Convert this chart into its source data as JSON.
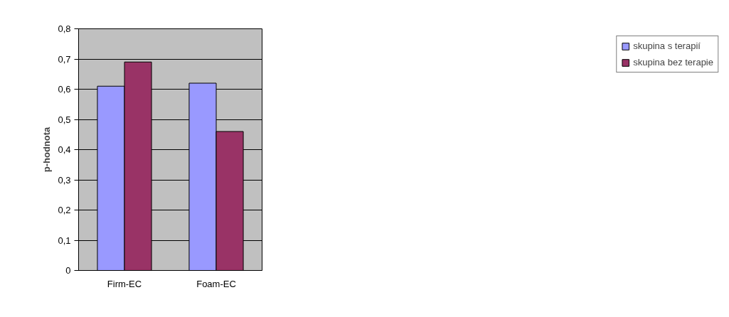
{
  "chart_data": {
    "type": "bar",
    "ylabel": "p-hodnota",
    "categories": [
      "Firm-EC",
      "Foam-EC"
    ],
    "series": [
      {
        "name": "skupina s terapií",
        "color": "#9999ff",
        "values": [
          0.61,
          0.62
        ]
      },
      {
        "name": "skupina bez terapie",
        "color": "#993366",
        "values": [
          0.69,
          0.46
        ]
      }
    ],
    "ylim": [
      0,
      0.8
    ],
    "yticks": [
      {
        "value": 0,
        "label": "0"
      },
      {
        "value": 0.1,
        "label": "0,1"
      },
      {
        "value": 0.2,
        "label": "0,2"
      },
      {
        "value": 0.3,
        "label": "0,3"
      },
      {
        "value": 0.4,
        "label": "0,4"
      },
      {
        "value": 0.5,
        "label": "0,5"
      },
      {
        "value": 0.6,
        "label": "0,6"
      },
      {
        "value": 0.7,
        "label": "0,7"
      },
      {
        "value": 0.8,
        "label": "0,8"
      }
    ],
    "grid": "y",
    "legend": "right"
  }
}
